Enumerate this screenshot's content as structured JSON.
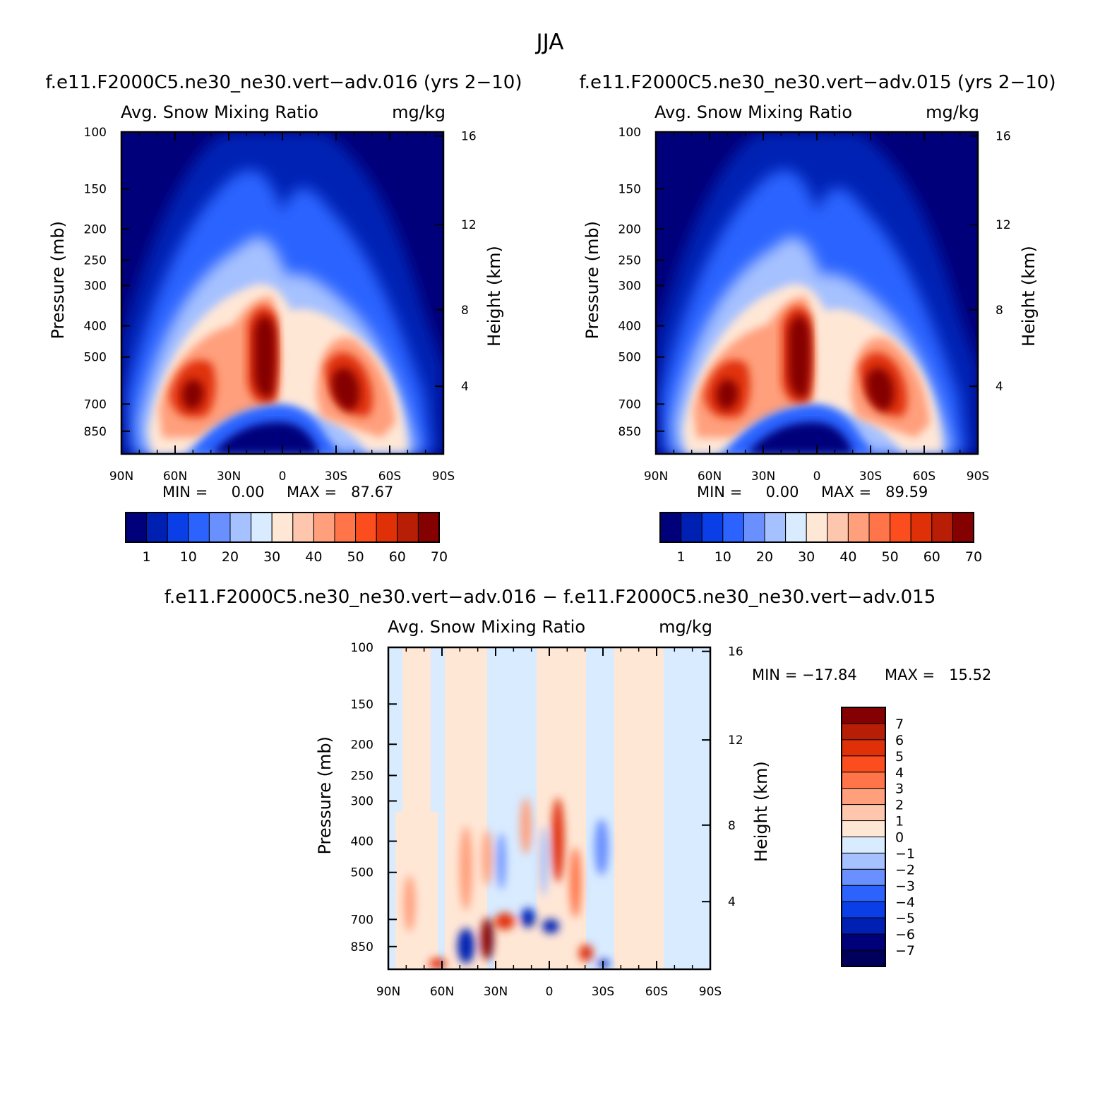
{
  "figure": {
    "title": "JJA"
  },
  "panels": [
    {
      "case_title": "f.e11.F2000C5.ne30_ne30.vert−adv.016 (yrs 2−10)",
      "variable": "Avg. Snow Mixing Ratio",
      "units": "mg/kg",
      "min_text": "MIN =     0.00",
      "max_text": "MAX =   87.67"
    },
    {
      "case_title": "f.e11.F2000C5.ne30_ne30.vert−adv.015 (yrs 2−10)",
      "variable": "Avg. Snow Mixing Ratio",
      "units": "mg/kg",
      "min_text": "MIN =     0.00",
      "max_text": "MAX =   89.59"
    },
    {
      "case_title": "f.e11.F2000C5.ne30_ne30.vert−adv.016 − f.e11.F2000C5.ne30_ne30.vert−adv.015",
      "variable": "Avg. Snow Mixing Ratio",
      "units": "mg/kg",
      "min_text": "MIN = −17.84",
      "max_text": "MAX =   15.52"
    }
  ],
  "axes": {
    "left_label": "Pressure (mb)",
    "right_label": "Height (km)",
    "x_ticks": [
      "90N",
      "60N",
      "30N",
      "0",
      "30S",
      "60S",
      "90S"
    ],
    "y_ticks": [
      "100",
      "150",
      "200",
      "250",
      "300",
      "400",
      "500",
      "700",
      "850"
    ],
    "height_ticks": [
      "16",
      "12",
      "8",
      "4"
    ]
  },
  "colorbars": {
    "mean_labels": [
      "1",
      "10",
      "20",
      "30",
      "40",
      "50",
      "60",
      "70"
    ],
    "mean_colors": [
      "#00007a",
      "#0020b4",
      "#0a3ee6",
      "#2c63ff",
      "#6a90ff",
      "#a6c1ff",
      "#d8ebff",
      "#ffe7d6",
      "#ffc6ae",
      "#ff9f7b",
      "#ff7448",
      "#fb4d1e",
      "#e03008",
      "#b81e06",
      "#850000"
    ],
    "diff_labels": [
      "7",
      "6",
      "5",
      "4",
      "3",
      "2",
      "1",
      "0",
      "−1",
      "−2",
      "−3",
      "−4",
      "−5",
      "−6",
      "−7"
    ],
    "diff_colors": [
      "#850000",
      "#b81e06",
      "#e03008",
      "#fb4d1e",
      "#ff7448",
      "#ff9f7b",
      "#ffc6ae",
      "#ffe7d6",
      "#d8ebff",
      "#a6c1ff",
      "#6a90ff",
      "#2c63ff",
      "#0a3ee6",
      "#0020b4",
      "#00007a",
      "#00005a"
    ]
  },
  "chart_data": [
    {
      "type": "heatmap",
      "title": "f.e11.F2000C5.ne30_ne30.vert−adv.016 (yrs 2−10)",
      "subtitle": "Avg. Snow Mixing Ratio",
      "units": "mg/kg",
      "xlabel": "",
      "ylabel": "Pressure (mb)",
      "y2label": "Height (km)",
      "x_ticks": [
        "90N",
        "60N",
        "30N",
        "0",
        "30S",
        "60S",
        "90S"
      ],
      "x_range": [
        90,
        -90
      ],
      "y_range_mb": [
        100,
        1000
      ],
      "y_scale": "log",
      "contour_levels": [
        0,
        1,
        5,
        10,
        15,
        20,
        25,
        30,
        35,
        40,
        45,
        50,
        55,
        60,
        65,
        70
      ],
      "min": 0.0,
      "max": 87.67,
      "maxima": [
        {
          "lat": 50,
          "p_mb": 600,
          "value": 75
        },
        {
          "lat": 12,
          "p_mb": 450,
          "value": 85
        },
        {
          "lat": -33,
          "p_mb": 590,
          "value": 80
        }
      ]
    },
    {
      "type": "heatmap",
      "title": "f.e11.F2000C5.ne30_ne30.vert−adv.015 (yrs 2−10)",
      "subtitle": "Avg. Snow Mixing Ratio",
      "units": "mg/kg",
      "xlabel": "",
      "ylabel": "Pressure (mb)",
      "y2label": "Height (km)",
      "x_ticks": [
        "90N",
        "60N",
        "30N",
        "0",
        "30S",
        "60S",
        "90S"
      ],
      "x_range": [
        90,
        -90
      ],
      "y_range_mb": [
        100,
        1000
      ],
      "y_scale": "log",
      "contour_levels": [
        0,
        1,
        5,
        10,
        15,
        20,
        25,
        30,
        35,
        40,
        45,
        50,
        55,
        60,
        65,
        70
      ],
      "min": 0.0,
      "max": 89.59,
      "maxima": [
        {
          "lat": 52,
          "p_mb": 600,
          "value": 75
        },
        {
          "lat": 10,
          "p_mb": 450,
          "value": 87
        },
        {
          "lat": -31,
          "p_mb": 590,
          "value": 82
        }
      ]
    },
    {
      "type": "heatmap",
      "title": "f.e11.F2000C5.ne30_ne30.vert−adv.016 − f.e11.F2000C5.ne30_ne30.vert−adv.015",
      "subtitle": "Avg. Snow Mixing Ratio",
      "units": "mg/kg",
      "xlabel": "",
      "ylabel": "Pressure (mb)",
      "y2label": "Height (km)",
      "x_ticks": [
        "90N",
        "60N",
        "30N",
        "0",
        "30S",
        "60S",
        "90S"
      ],
      "x_range": [
        90,
        -90
      ],
      "y_range_mb": [
        100,
        1000
      ],
      "y_scale": "log",
      "contour_levels": [
        -7,
        -6,
        -5,
        -4,
        -3,
        -2,
        -1,
        0,
        1,
        2,
        3,
        4,
        5,
        6,
        7
      ],
      "min": -17.84,
      "max": 15.52
    }
  ]
}
